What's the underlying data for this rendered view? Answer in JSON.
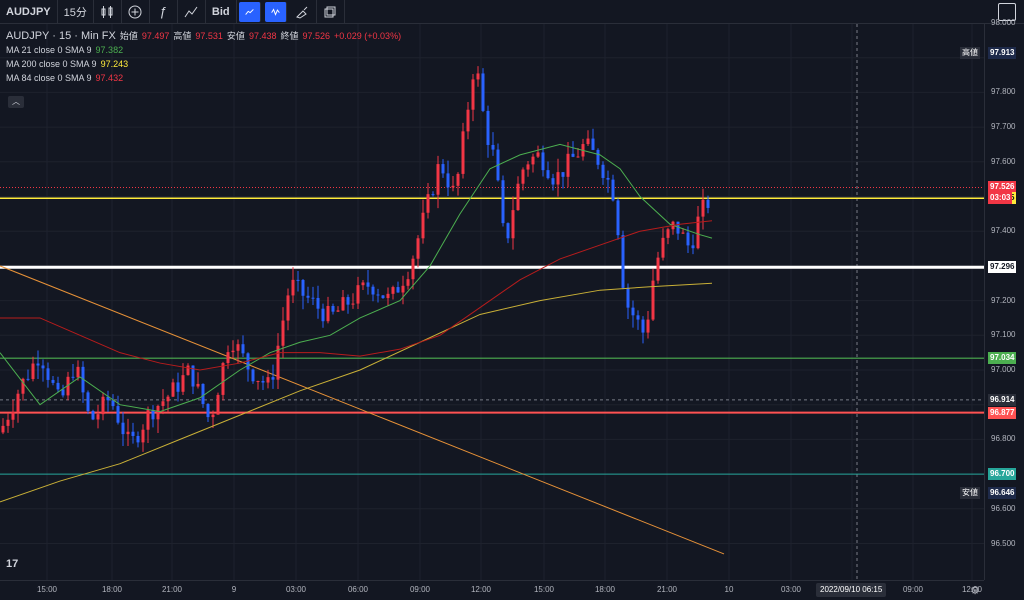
{
  "toolbar": {
    "symbol": "AUDJPY",
    "interval": "15分",
    "bid_label": "Bid",
    "icons": [
      "candles-icon",
      "add-indicator-icon",
      "fx-icon",
      "indicators-icon",
      "line-tool-icon",
      "zigzag-icon",
      "brush-icon",
      "layers-icon"
    ],
    "right_icon": "snapshot-icon"
  },
  "legend": {
    "title": "AUDJPY · 15 · Min FX",
    "open_label": "始値",
    "open": "97.497",
    "high_label": "高値",
    "high": "97.531",
    "low_label": "安値",
    "low": "97.438",
    "close_label": "終値",
    "close": "97.526",
    "change": "+0.029 (+0.03%)",
    "ma1_label": "MA 21 close 0 SMA 9",
    "ma1_value": "97.382",
    "ma2_label": "MA 200 close 0 SMA 9",
    "ma2_value": "97.243",
    "ma3_label": "MA 84 close 0 SMA 9",
    "ma3_value": "97.432"
  },
  "price_axis": {
    "ticks": [
      "98.000",
      "97.800",
      "97.700",
      "97.600",
      "97.500",
      "97.400",
      "97.200",
      "97.100",
      "97.000",
      "96.800",
      "96.600",
      "96.500"
    ],
    "high_label": "高値",
    "high_value": "97.913",
    "current_price": "97.526",
    "countdown": "03:03",
    "yellow_level": "97.495",
    "white_level": "97.296",
    "green_level": "97.034",
    "cursor_price": "96.914",
    "red_level": "96.877",
    "cyan_level": "96.700",
    "low_label": "安値",
    "low_value": "96.646"
  },
  "time_axis": {
    "ticks": [
      "15:00",
      "18:00",
      "21:00",
      "9",
      "03:00",
      "06:00",
      "09:00",
      "12:00",
      "15:00",
      "18:00",
      "21:00",
      "10",
      "03:00",
      "09:00",
      "12:00"
    ],
    "cursor_time": "2022/09/10 06:15"
  },
  "colors": {
    "background": "#131722",
    "up": "#f23645",
    "down": "#2962ff",
    "ma21": "#4caf50",
    "ma200": "#c9b037",
    "ma84": "#b71c1c",
    "yellow_line": "#ffeb3b",
    "white_line": "#ffffff",
    "green_line": "#4caf50",
    "red_line": "#ff5252",
    "cyan_line": "#26a69a",
    "trendline": "#e69138"
  },
  "chart_data": {
    "type": "candlestick",
    "ylim": [
      96.45,
      98.05
    ],
    "candles": []
  }
}
